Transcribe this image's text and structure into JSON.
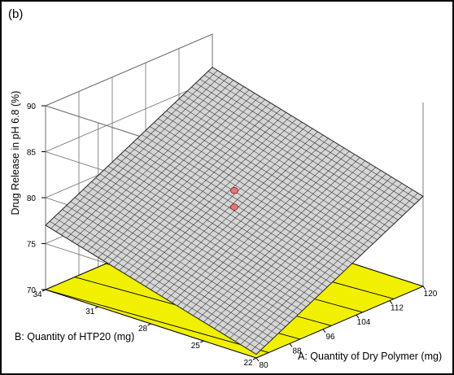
{
  "panel_label": "(b)",
  "colors": {
    "floor_fill": "#f0f000",
    "surface_fill": "#d6d6d6",
    "mesh": "#2a2a2a",
    "grid": "#6e6e6e",
    "design_point": "#e07a7a"
  },
  "chart_data": {
    "type": "surface",
    "zlabel": "Drug Release in pH 6.8 (%)",
    "xlabel": "A: Quantity of Dry Polymer (mg)",
    "ylabel": "B: Quantity of HTP20 (mg)",
    "x_ticks": [
      "80",
      "88",
      "96",
      "104",
      "112",
      "120"
    ],
    "y_ticks": [
      "22",
      "25",
      "28",
      "31",
      "34"
    ],
    "z_ticks": [
      "70",
      "75",
      "80",
      "85",
      "90"
    ],
    "xlim": [
      80,
      120
    ],
    "ylim": [
      22,
      34
    ],
    "zlim": [
      70,
      90
    ],
    "grid": true,
    "surface_corners": [
      {
        "x": 80,
        "y": 22,
        "z": 70.4
      },
      {
        "x": 120,
        "y": 22,
        "z": 79.8
      },
      {
        "x": 80,
        "y": 34,
        "z": 77.0
      },
      {
        "x": 120,
        "y": 34,
        "z": 86.4
      }
    ],
    "floor_contours_x_at_y22": [
      83,
      90.5,
      98,
      105.5,
      113
    ],
    "floor_contours_x_at_y34": [
      79.5,
      87,
      94.5,
      102,
      109.5
    ],
    "design_points": [
      {
        "x": 100,
        "y": 28,
        "z": 80.6
      },
      {
        "x": 100,
        "y": 28,
        "z": 78.8
      }
    ]
  }
}
